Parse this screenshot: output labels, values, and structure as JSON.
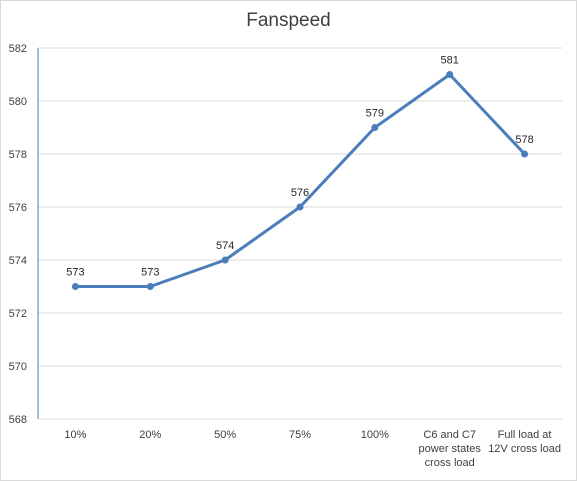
{
  "chart_data": {
    "type": "line",
    "title": "Fanspeed",
    "xlabel": "",
    "ylabel": "",
    "categories": [
      "10%",
      "20%",
      "50%",
      "75%",
      "100%",
      "C6 and C7 power states cross load",
      "Full load at 12V cross load"
    ],
    "category_lines": [
      [
        "10%"
      ],
      [
        "20%"
      ],
      [
        "50%"
      ],
      [
        "75%"
      ],
      [
        "100%"
      ],
      [
        "C6 and C7",
        "power states",
        "cross load"
      ],
      [
        "Full load at",
        "12V cross load"
      ]
    ],
    "series": [
      {
        "values": [
          573,
          573,
          574,
          576,
          579,
          581,
          578
        ],
        "color": "#4a7ebb"
      }
    ],
    "ylim": [
      568,
      582
    ],
    "yticks": [
      568,
      570,
      572,
      574,
      576,
      578,
      580,
      582
    ],
    "grid": true,
    "legend": "none",
    "data_labels": true
  }
}
